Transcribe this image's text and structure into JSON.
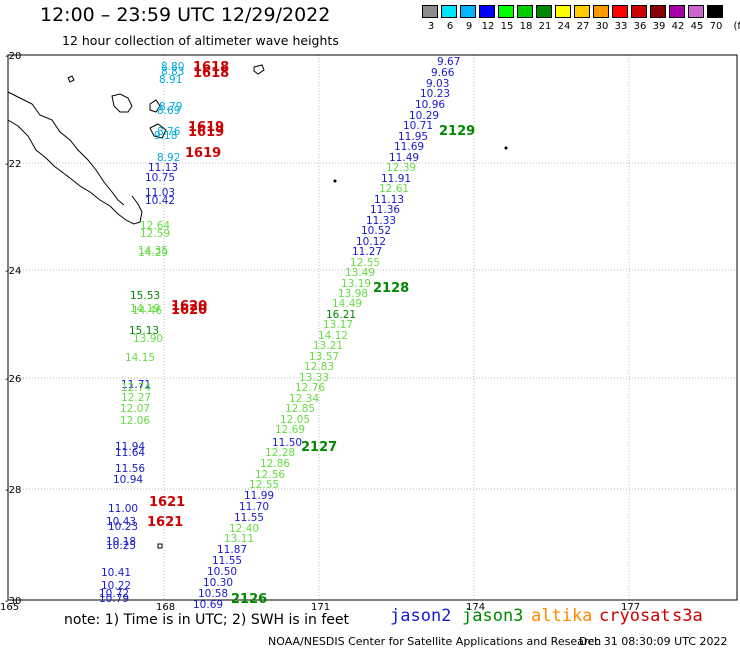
{
  "title": "12:00 – 23:59 UTC 12/29/2022",
  "subtitle": "12 hour collection of altimeter wave heights",
  "colorbar": {
    "unit": "(ft)",
    "labels": [
      "3",
      "6",
      "9",
      "12",
      "15",
      "18",
      "21",
      "24",
      "27",
      "30",
      "33",
      "36",
      "39",
      "42",
      "45",
      "70"
    ],
    "colors": [
      "#8c8c8c",
      "#00e5ff",
      "#00b4ff",
      "#0000ff",
      "#00ff00",
      "#00cc00",
      "#008800",
      "#ffff00",
      "#ffcc00",
      "#ff9900",
      "#ff0000",
      "#cc0000",
      "#880000",
      "#aa00aa",
      "#cc66cc",
      "#000000"
    ]
  },
  "axes": {
    "lat_labels": [
      "-20",
      "-22",
      "-24",
      "-26",
      "-28",
      "-30"
    ],
    "lon_labels": [
      "165",
      "168",
      "171",
      "174",
      "177"
    ]
  },
  "colors": {
    "jason2": "#1a1acc",
    "jason3": "#008800",
    "altika": "#ff8800",
    "cryosat": "#cc0000",
    "s3a": "#cc0000",
    "light_green": "#66dd44",
    "cyan": "#00aadd",
    "frame": "#000000",
    "grid": "#bbbbbb"
  },
  "track_labels": [
    {
      "text": "1618",
      "color": "red"
    },
    {
      "text": "1618",
      "color": "red"
    },
    {
      "text": "1619",
      "color": "red"
    },
    {
      "text": "1619",
      "color": "red"
    },
    {
      "text": "1619",
      "color": "red"
    },
    {
      "text": "2129",
      "color": "green"
    },
    {
      "text": "2128",
      "color": "green"
    },
    {
      "text": "1620",
      "color": "red"
    },
    {
      "text": "1620",
      "color": "red"
    },
    {
      "text": "2127",
      "color": "green"
    },
    {
      "text": "1621",
      "color": "red"
    },
    {
      "text": "1621",
      "color": "red"
    },
    {
      "text": "2126",
      "color": "green"
    }
  ],
  "wave_heights": [
    {
      "v": "9.67",
      "c": "blue"
    },
    {
      "v": "9.66",
      "c": "blue"
    },
    {
      "v": "9.03",
      "c": "blue"
    },
    {
      "v": "10.23",
      "c": "blue"
    },
    {
      "v": "10.96",
      "c": "blue"
    },
    {
      "v": "10.29",
      "c": "blue"
    },
    {
      "v": "10.71",
      "c": "blue"
    },
    {
      "v": "11.95",
      "c": "blue"
    },
    {
      "v": "11.69",
      "c": "blue"
    },
    {
      "v": "11.49",
      "c": "blue"
    },
    {
      "v": "12.39",
      "c": "lgreen"
    },
    {
      "v": "11.91",
      "c": "blue"
    },
    {
      "v": "12.61",
      "c": "lgreen"
    },
    {
      "v": "11.13",
      "c": "blue"
    },
    {
      "v": "11.36",
      "c": "blue"
    },
    {
      "v": "11.33",
      "c": "blue"
    },
    {
      "v": "10.52",
      "c": "blue"
    },
    {
      "v": "10.12",
      "c": "blue"
    },
    {
      "v": "11.27",
      "c": "blue"
    },
    {
      "v": "12.55",
      "c": "lgreen"
    },
    {
      "v": "13.49",
      "c": "lgreen"
    },
    {
      "v": "13.19",
      "c": "lgreen"
    },
    {
      "v": "13.98",
      "c": "lgreen"
    },
    {
      "v": "14.49",
      "c": "lgreen"
    },
    {
      "v": "16.21",
      "c": "green"
    },
    {
      "v": "13.17",
      "c": "lgreen"
    },
    {
      "v": "14.12",
      "c": "lgreen"
    },
    {
      "v": "13.21",
      "c": "lgreen"
    },
    {
      "v": "13.57",
      "c": "lgreen"
    },
    {
      "v": "12.83",
      "c": "lgreen"
    },
    {
      "v": "13.33",
      "c": "lgreen"
    },
    {
      "v": "12.76",
      "c": "lgreen"
    },
    {
      "v": "12.34",
      "c": "lgreen"
    },
    {
      "v": "12.85",
      "c": "lgreen"
    },
    {
      "v": "12.05",
      "c": "lgreen"
    },
    {
      "v": "12.69",
      "c": "lgreen"
    },
    {
      "v": "11.50",
      "c": "blue"
    },
    {
      "v": "12.28",
      "c": "lgreen"
    },
    {
      "v": "12.86",
      "c": "lgreen"
    },
    {
      "v": "12.56",
      "c": "lgreen"
    },
    {
      "v": "12.55",
      "c": "lgreen"
    },
    {
      "v": "11.99",
      "c": "blue"
    },
    {
      "v": "11.70",
      "c": "blue"
    },
    {
      "v": "11.55",
      "c": "blue"
    },
    {
      "v": "12.40",
      "c": "lgreen"
    },
    {
      "v": "13.11",
      "c": "lgreen"
    },
    {
      "v": "11.87",
      "c": "blue"
    },
    {
      "v": "11.55",
      "c": "blue"
    },
    {
      "v": "10.50",
      "c": "blue"
    },
    {
      "v": "10.30",
      "c": "blue"
    },
    {
      "v": "10.58",
      "c": "blue"
    },
    {
      "v": "10.69",
      "c": "blue"
    },
    {
      "v": "8.80",
      "c": "cyan"
    },
    {
      "v": "8.83",
      "c": "cyan"
    },
    {
      "v": "8.91",
      "c": "cyan"
    },
    {
      "v": "8.79",
      "c": "cyan"
    },
    {
      "v": "8.69",
      "c": "cyan"
    },
    {
      "v": "8.76",
      "c": "cyan"
    },
    {
      "v": "9.18",
      "c": "cyan"
    },
    {
      "v": "8.92",
      "c": "cyan"
    },
    {
      "v": "11.13",
      "c": "blue"
    },
    {
      "v": "10.75",
      "c": "blue"
    },
    {
      "v": "11.03",
      "c": "blue"
    },
    {
      "v": "10.42",
      "c": "blue"
    },
    {
      "v": "12.64",
      "c": "lgreen"
    },
    {
      "v": "12.59",
      "c": "lgreen"
    },
    {
      "v": "14.35",
      "c": "lgreen"
    },
    {
      "v": "14.29",
      "c": "lgreen"
    },
    {
      "v": "15.53",
      "c": "green"
    },
    {
      "v": "14.19",
      "c": "lgreen"
    },
    {
      "v": "14.46",
      "c": "lgreen"
    },
    {
      "v": "15.13",
      "c": "green"
    },
    {
      "v": "13.90",
      "c": "lgreen"
    },
    {
      "v": "14.15",
      "c": "lgreen"
    },
    {
      "v": "11.71",
      "c": "blue"
    },
    {
      "v": "12.74",
      "c": "lgreen"
    },
    {
      "v": "12.27",
      "c": "lgreen"
    },
    {
      "v": "12.07",
      "c": "lgreen"
    },
    {
      "v": "12.06",
      "c": "lgreen"
    },
    {
      "v": "11.94",
      "c": "blue"
    },
    {
      "v": "11.64",
      "c": "blue"
    },
    {
      "v": "11.56",
      "c": "blue"
    },
    {
      "v": "10.94",
      "c": "blue"
    },
    {
      "v": "11.00",
      "c": "blue"
    },
    {
      "v": "10.43",
      "c": "blue"
    },
    {
      "v": "10.23",
      "c": "blue"
    },
    {
      "v": "10.18",
      "c": "blue"
    },
    {
      "v": "10.25",
      "c": "blue"
    },
    {
      "v": "10.41",
      "c": "blue"
    },
    {
      "v": "10.22",
      "c": "blue"
    },
    {
      "v": "10.72",
      "c": "blue"
    },
    {
      "v": "10.79",
      "c": "blue"
    }
  ],
  "footer": {
    "note": "note: 1) Time is in UTC; 2) SWH is in feet",
    "legend": [
      {
        "text": "jason2",
        "color": "#1a1acc"
      },
      {
        "text": "jason3",
        "color": "#008800"
      },
      {
        "text": "altika",
        "color": "#ff8800"
      },
      {
        "text": "cryosat",
        "color": "#cc0000"
      },
      {
        "text": "s3a",
        "color": "#cc0000"
      }
    ],
    "credit": "NOAA/NESDIS Center for Satellite Applications and Research",
    "timestamp": "Dec 31 08:30:09 UTC 2022"
  }
}
